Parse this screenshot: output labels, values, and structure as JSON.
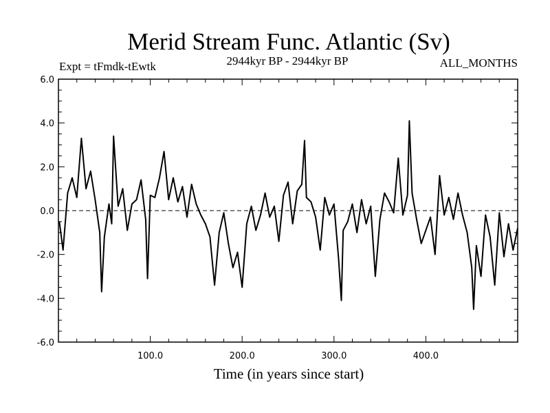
{
  "chart_data": {
    "type": "line",
    "title": "Merid Stream Func. Atlantic (Sv)",
    "subtitle_left": "Expt = tFmdk-tEwtk",
    "subtitle_center": "2944kyr BP - 2944kyr BP",
    "subtitle_right": "ALL_MONTHS",
    "xlabel": "Time (in years since start)",
    "ylabel": "",
    "xlim": [
      0,
      500
    ],
    "ylim": [
      -6,
      6
    ],
    "x_ticks": [
      100,
      200,
      300,
      400
    ],
    "x_tick_labels": [
      "100.0",
      "200.0",
      "300.0",
      "400.0"
    ],
    "y_ticks": [
      -6,
      -4,
      -2,
      0,
      2,
      4,
      6
    ],
    "y_tick_labels": [
      "-6.0",
      "-4.0",
      "-2.0",
      "0.0",
      "2.0",
      "4.0",
      "6.0"
    ],
    "zero_line": "dashed",
    "series": [
      {
        "name": "Merid Stream Func. Atlantic",
        "x": [
          1,
          5,
          10,
          15,
          20,
          25,
          30,
          35,
          40,
          45,
          47,
          50,
          55,
          58,
          60,
          65,
          70,
          75,
          80,
          85,
          90,
          95,
          97,
          100,
          105,
          110,
          115,
          120,
          125,
          130,
          135,
          140,
          145,
          150,
          155,
          160,
          165,
          170,
          175,
          180,
          185,
          190,
          195,
          200,
          205,
          210,
          215,
          220,
          225,
          230,
          235,
          240,
          245,
          250,
          255,
          260,
          265,
          268,
          270,
          275,
          280,
          285,
          290,
          295,
          300,
          305,
          308,
          310,
          315,
          320,
          325,
          330,
          335,
          340,
          345,
          350,
          355,
          360,
          365,
          370,
          375,
          380,
          382,
          385,
          390,
          395,
          400,
          405,
          410,
          415,
          420,
          425,
          430,
          435,
          440,
          445,
          450,
          452,
          455,
          460,
          465,
          470,
          475,
          480,
          485,
          490,
          495,
          500
        ],
        "values": [
          -0.5,
          -1.8,
          0.8,
          1.5,
          0.6,
          3.3,
          1.0,
          1.8,
          0.5,
          -1.0,
          -3.7,
          -1.2,
          0.3,
          -0.6,
          3.4,
          0.2,
          1.0,
          -0.9,
          0.3,
          0.5,
          1.4,
          -0.4,
          -3.1,
          0.7,
          0.6,
          1.5,
          2.7,
          0.5,
          1.5,
          0.4,
          1.1,
          -0.3,
          1.2,
          0.3,
          -0.2,
          -0.6,
          -1.2,
          -3.4,
          -1.0,
          -0.1,
          -1.5,
          -2.6,
          -1.9,
          -3.5,
          -0.6,
          0.2,
          -0.9,
          -0.2,
          0.8,
          -0.3,
          0.2,
          -1.4,
          0.7,
          1.3,
          -0.6,
          0.9,
          1.2,
          3.2,
          0.6,
          0.4,
          -0.3,
          -1.8,
          0.6,
          -0.2,
          0.3,
          -2.2,
          -4.1,
          -0.9,
          -0.5,
          0.3,
          -1.0,
          0.5,
          -0.6,
          0.2,
          -3.0,
          -0.4,
          0.8,
          0.4,
          -0.1,
          2.4,
          -0.2,
          0.7,
          4.1,
          0.8,
          -0.4,
          -1.5,
          -0.9,
          -0.3,
          -2.0,
          1.6,
          -0.2,
          0.6,
          -0.4,
          0.8,
          -0.2,
          -1.0,
          -2.6,
          -4.5,
          -1.6,
          -3.0,
          -0.2,
          -1.2,
          -3.4,
          -0.1,
          -2.1,
          -0.6,
          -1.8,
          -0.8
        ]
      }
    ]
  }
}
